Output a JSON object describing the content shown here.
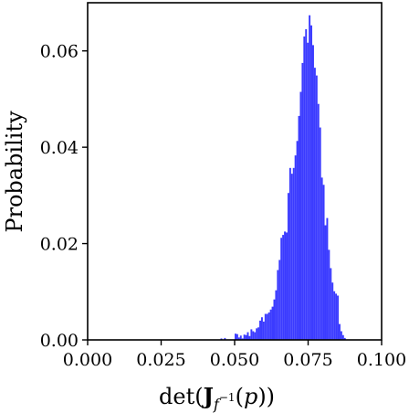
{
  "chart_data": {
    "type": "bar",
    "title": "",
    "xlabel": "det(J_{f^{-1}}(p))",
    "ylabel": "Probability",
    "xlim": [
      0.0,
      0.1
    ],
    "ylim": [
      0.0,
      0.07
    ],
    "grid": false,
    "bar_color": "#3b3bff",
    "x_ticks": [
      "0.000",
      "0.025",
      "0.050",
      "0.075",
      "0.100"
    ],
    "x_tick_values": [
      0.0,
      0.025,
      0.05,
      0.075,
      0.1
    ],
    "y_ticks": [
      "0.00",
      "0.02",
      "0.04",
      "0.06"
    ],
    "y_tick_values": [
      0.0,
      0.02,
      0.04,
      0.06
    ],
    "bin_width": 0.0006,
    "bins_x": [
      0.0452,
      0.0458,
      0.0464,
      0.047,
      0.0476,
      0.0482,
      0.0488,
      0.0494,
      0.05,
      0.0506,
      0.0512,
      0.0518,
      0.0524,
      0.053,
      0.0536,
      0.0542,
      0.0548,
      0.0554,
      0.056,
      0.0566,
      0.0572,
      0.0578,
      0.0584,
      0.059,
      0.0596,
      0.0602,
      0.0608,
      0.0614,
      0.062,
      0.0626,
      0.0632,
      0.0638,
      0.0644,
      0.065,
      0.0656,
      0.0662,
      0.0668,
      0.0674,
      0.068,
      0.0686,
      0.0692,
      0.0698,
      0.0704,
      0.071,
      0.0716,
      0.0722,
      0.0728,
      0.0734,
      0.074,
      0.0746,
      0.0752,
      0.0758,
      0.0764,
      0.077,
      0.0776,
      0.0782,
      0.0788,
      0.0794,
      0.08,
      0.0806,
      0.0812,
      0.0818,
      0.0824,
      0.083,
      0.0836,
      0.0842,
      0.0848,
      0.0854,
      0.086,
      0.0866,
      0.0872
    ],
    "bins_y": [
      0.0003,
      0.0,
      0.0004,
      0.0,
      0.0,
      0.0,
      0.0,
      0.0,
      0.0013,
      0.0012,
      0.0005,
      0.0009,
      0.0003,
      0.0011,
      0.001,
      0.0016,
      0.0008,
      0.0022,
      0.0018,
      0.0016,
      0.0024,
      0.0026,
      0.004,
      0.0047,
      0.0038,
      0.0054,
      0.0054,
      0.0057,
      0.0063,
      0.0069,
      0.0084,
      0.0103,
      0.0145,
      0.0166,
      0.0212,
      0.0218,
      0.0225,
      0.0223,
      0.0305,
      0.0357,
      0.0345,
      0.0357,
      0.0383,
      0.0413,
      0.0465,
      0.0515,
      0.0575,
      0.063,
      0.0645,
      0.0617,
      0.0674,
      0.0653,
      0.0612,
      0.0565,
      0.0549,
      0.049,
      0.0441,
      0.0337,
      0.0322,
      0.0238,
      0.0253,
      0.0187,
      0.0149,
      0.0119,
      0.0101,
      0.0096,
      0.0092,
      0.0033,
      0.0018,
      0.001,
      0.0004
    ]
  }
}
